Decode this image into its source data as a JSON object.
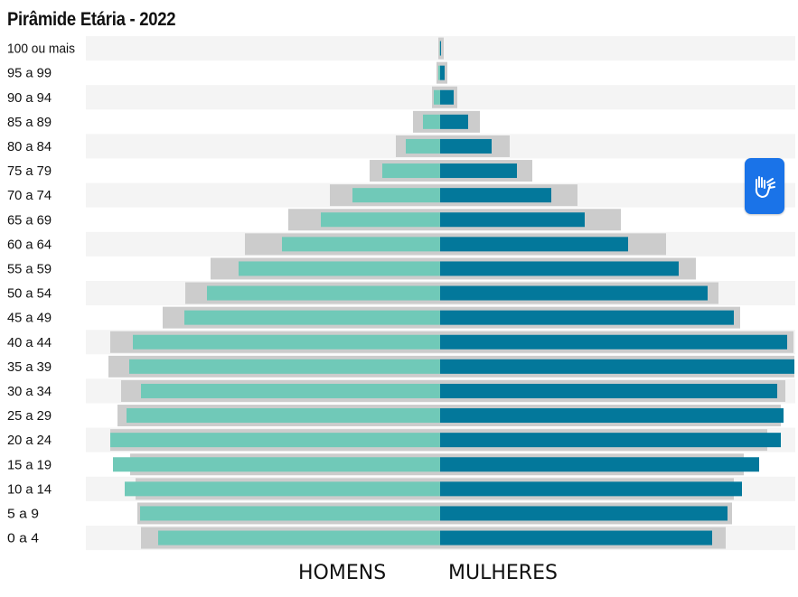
{
  "chart_data": {
    "type": "bar",
    "orientation": "horizontal-population-pyramid",
    "title": "Pirâmide Etária - 2022",
    "categories": [
      "100 ou mais",
      "95 a 99",
      "90 a 94",
      "85 a 89",
      "80 a 84",
      "75 a 79",
      "70 a 74",
      "65 a 69",
      "60 a 64",
      "55 a 59",
      "50 a 54",
      "45 a 49",
      "40 a 44",
      "35 a 39",
      "30 a 34",
      "25 a 29",
      "20 a 24",
      "15 a 19",
      "10 a 14",
      "5 a 9",
      "0 a 4"
    ],
    "series": [
      {
        "name": "HOMENS",
        "values": [
          0.5,
          2,
          7,
          19,
          38,
          64,
          97,
          132,
          175,
          223,
          258,
          283,
          340,
          344,
          331,
          347,
          365,
          362,
          349,
          332,
          312
        ]
      },
      {
        "name": "MULHERES",
        "values": [
          1,
          5,
          15,
          31,
          57,
          85,
          123,
          160,
          208,
          264,
          296,
          325,
          384,
          392,
          373,
          380,
          377,
          353,
          334,
          318,
          301
        ]
      }
    ],
    "reference_series_values_left": [
      2,
      4,
      9,
      30,
      49,
      78,
      122,
      168,
      216,
      254,
      282,
      307,
      365,
      367,
      353,
      357,
      365,
      343,
      337,
      335,
      331
    ],
    "reference_series_values_right": [
      4,
      8,
      19,
      44,
      77,
      102,
      152,
      200,
      250,
      283,
      308,
      332,
      391,
      392,
      382,
      377,
      362,
      336,
      325,
      323,
      316
    ],
    "xlim": [
      -400,
      400
    ],
    "colors": {
      "men": "#70c9b8",
      "women": "#03789b",
      "reference": "#cccccc",
      "row_band": "#f4f4f4"
    },
    "grid": false,
    "legend": "bottom"
  },
  "labels": {
    "men": "HOMENS",
    "women": "MULHERES"
  },
  "accessibility_button": {
    "icon": "hand-sign-language-icon",
    "color": "#1a73e8"
  }
}
